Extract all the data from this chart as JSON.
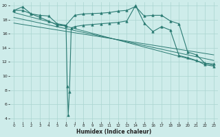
{
  "xlabel": "Humidex (Indice chaleur)",
  "bg_color": "#ceecea",
  "grid_color": "#aad4d0",
  "line_color": "#2a7a72",
  "xlim": [
    -0.5,
    23.5
  ],
  "ylim": [
    3.5,
    20.5
  ],
  "yticks": [
    4,
    6,
    8,
    10,
    12,
    14,
    16,
    18,
    20
  ],
  "xticks": [
    0,
    1,
    2,
    3,
    4,
    5,
    6,
    7,
    8,
    9,
    10,
    11,
    12,
    13,
    14,
    15,
    16,
    17,
    18,
    19,
    20,
    21,
    22,
    23
  ],
  "series1_x": [
    0,
    1,
    2,
    3,
    4,
    5,
    6,
    7,
    8,
    9,
    10,
    11,
    12,
    13,
    14,
    15,
    16,
    17,
    18,
    19,
    20,
    21,
    22,
    23
  ],
  "series1_y": [
    19.3,
    19.8,
    18.8,
    18.6,
    18.5,
    17.4,
    17.2,
    18.6,
    18.8,
    18.85,
    18.9,
    19.0,
    19.2,
    19.3,
    19.85,
    18.5,
    18.6,
    18.6,
    17.8,
    17.4,
    13.4,
    13.0,
    11.8,
    11.7
  ],
  "series2_x": [
    0,
    1,
    2,
    3,
    4,
    5,
    6,
    6.15,
    6.25,
    6.4,
    6.6,
    7,
    8,
    9,
    10,
    11,
    12,
    13,
    14,
    15,
    16,
    17,
    18,
    19,
    20,
    21,
    22,
    23
  ],
  "series2_y": [
    19.3,
    19.3,
    18.8,
    18.3,
    17.8,
    17.2,
    17.1,
    8.5,
    4.5,
    7.8,
    16.8,
    17.0,
    17.2,
    17.3,
    17.4,
    17.5,
    17.6,
    17.8,
    20.0,
    17.5,
    16.3,
    17.0,
    16.5,
    12.9,
    12.6,
    12.2,
    11.6,
    11.4
  ],
  "line1_x": [
    0,
    23
  ],
  "line1_y": [
    19.0,
    11.5
  ],
  "line2_x": [
    0,
    23
  ],
  "line2_y": [
    18.3,
    12.2
  ],
  "line3_x": [
    0,
    23
  ],
  "line3_y": [
    17.5,
    13.0
  ]
}
